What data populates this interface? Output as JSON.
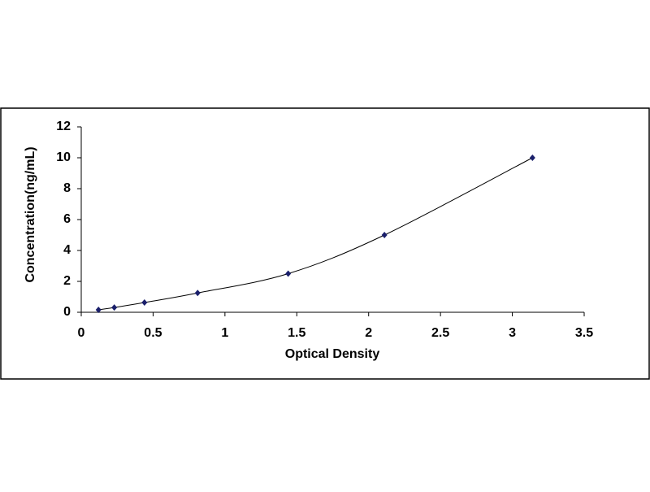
{
  "chart_data": {
    "type": "scatter",
    "x_label": "Optical Density",
    "y_label": "Concentration(ng/mL)",
    "x": [
      0.12,
      0.23,
      0.44,
      0.81,
      1.44,
      2.11,
      3.14
    ],
    "series": [
      {
        "color": "#1a1f6b",
        "line_color": "#000000",
        "values": [
          0.16,
          0.31,
          0.63,
          1.25,
          2.5,
          5,
          10
        ]
      }
    ],
    "xlim": [
      0,
      3.5
    ],
    "xticks": [
      0,
      0.5,
      1,
      1.5,
      2,
      2.5,
      3,
      3.5
    ],
    "ylim": [
      0,
      12
    ],
    "yticks": [
      0,
      2,
      4,
      6,
      8,
      10,
      12
    ],
    "grid": false
  }
}
